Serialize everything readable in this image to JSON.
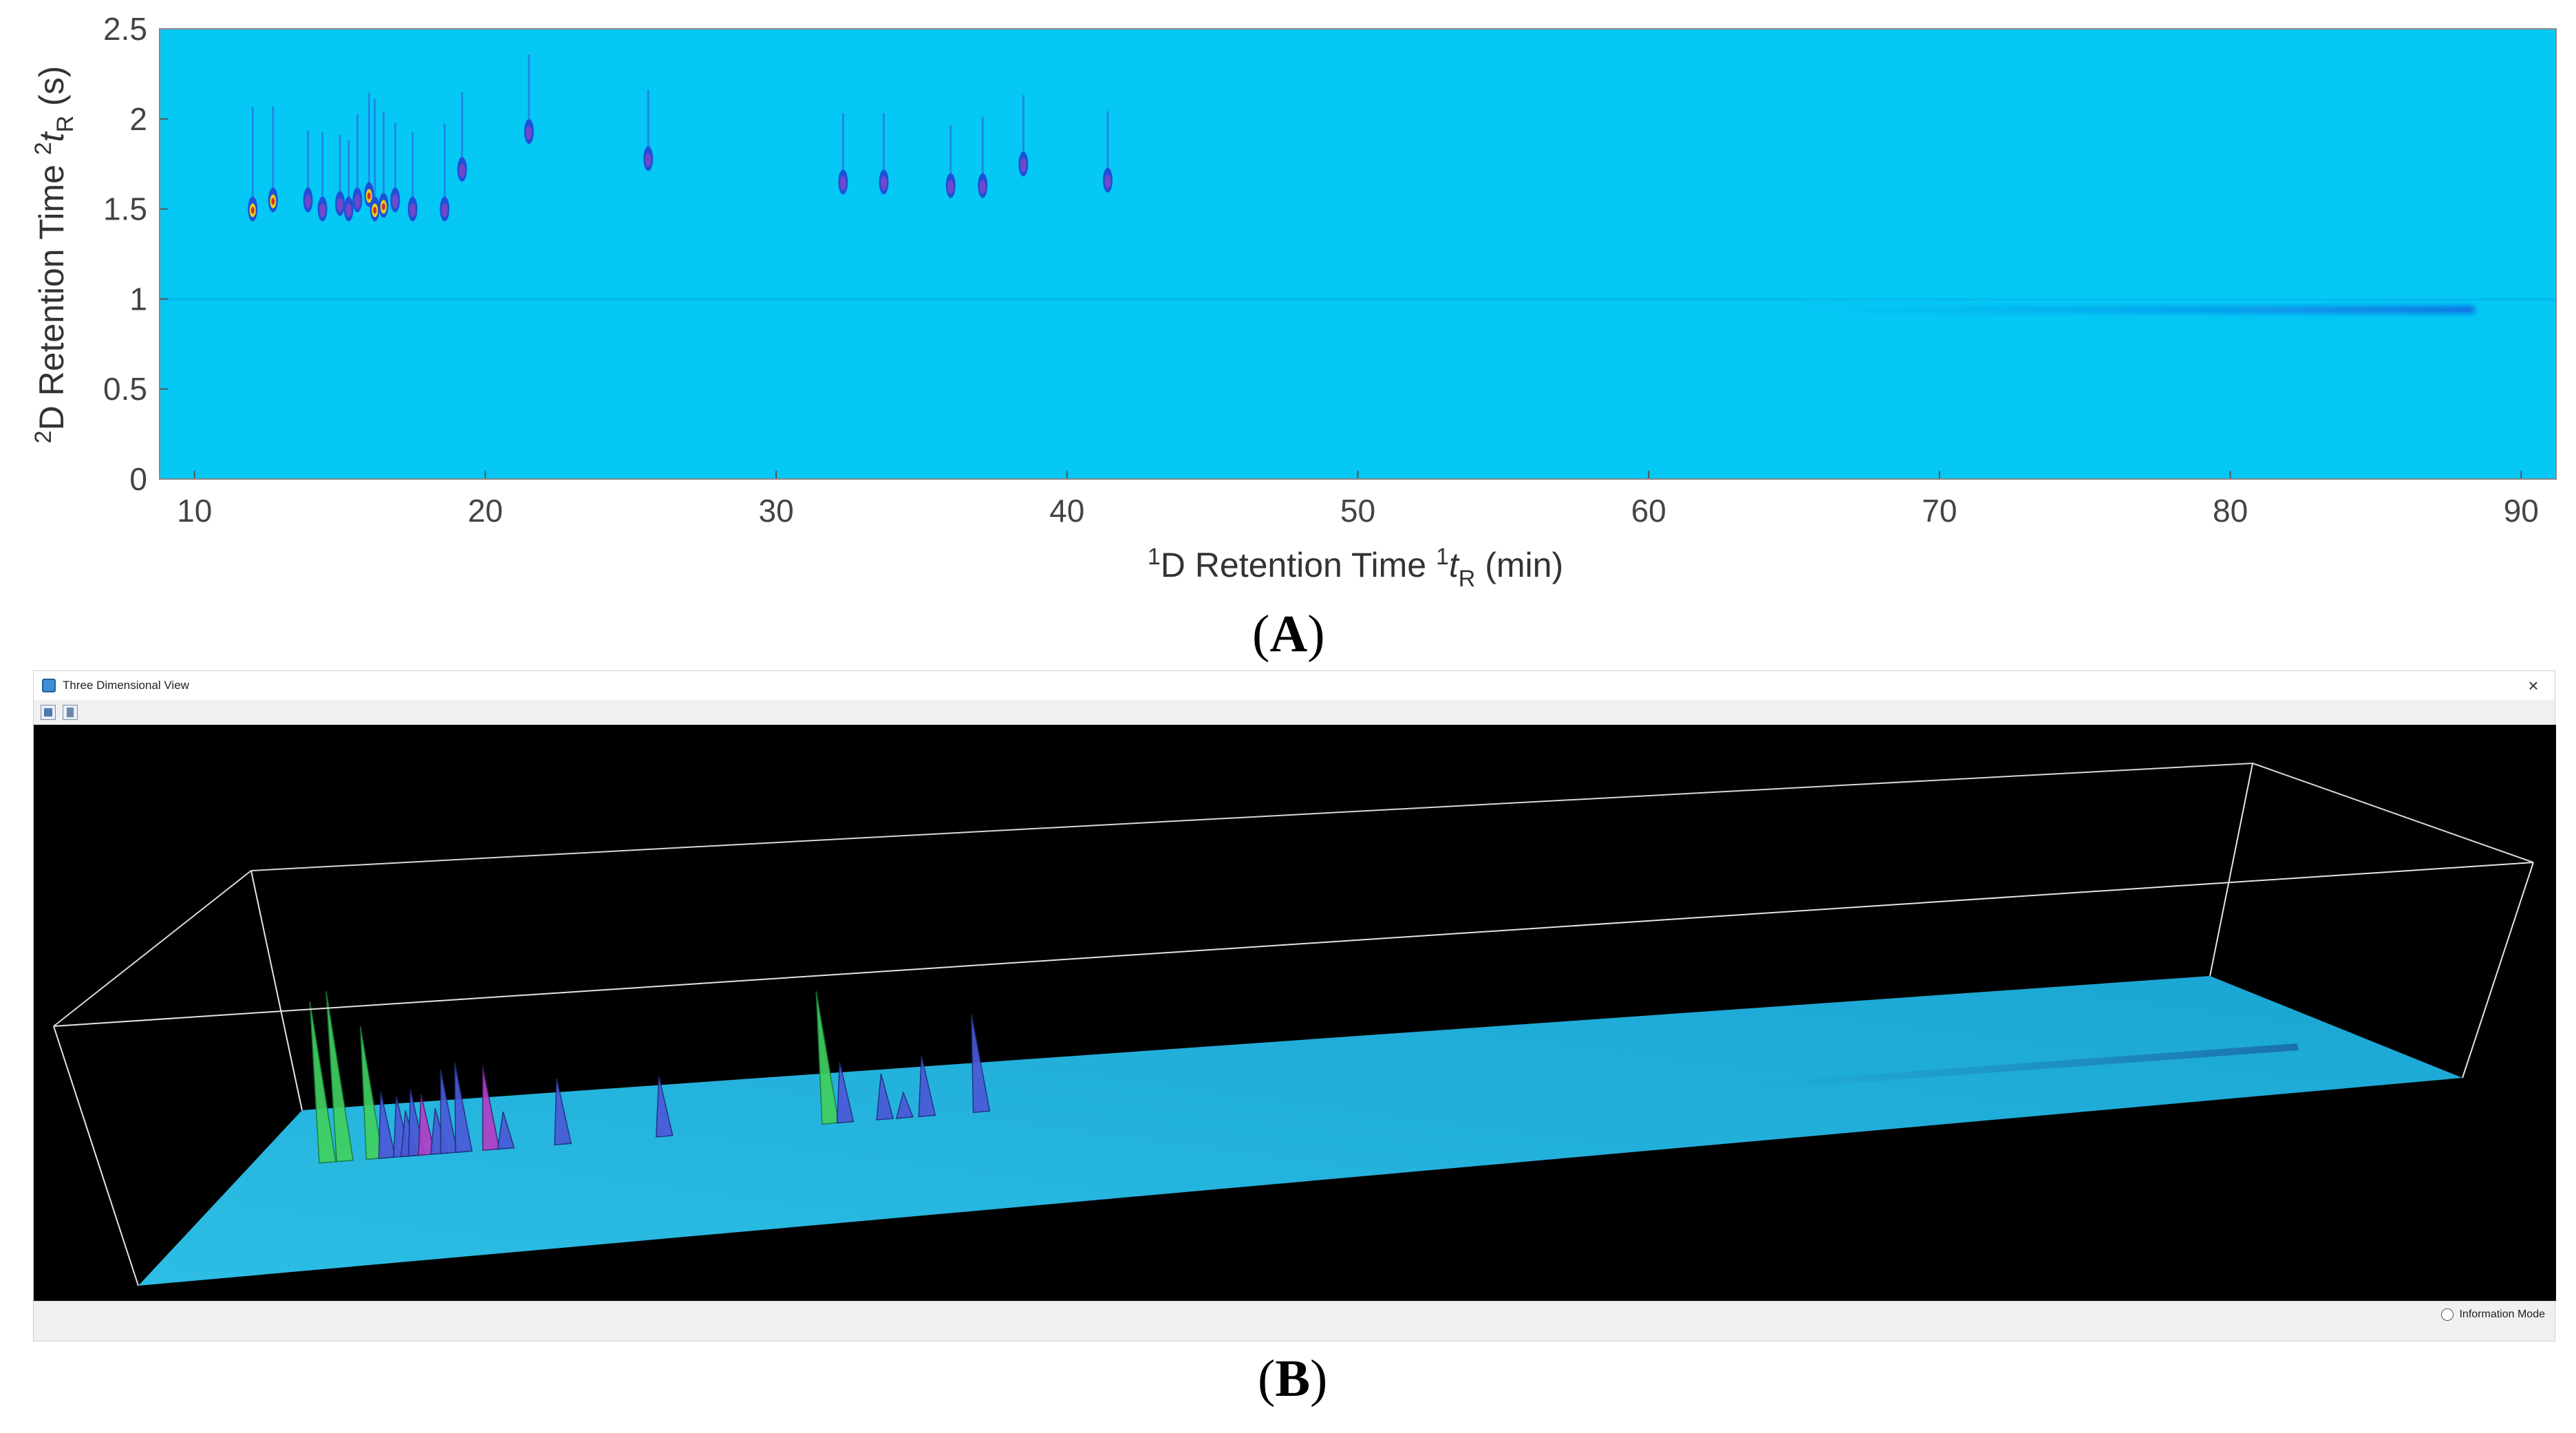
{
  "panel_a": {
    "caption": "(A)",
    "caption_letter": "A",
    "chart_data": {
      "type": "heatmap",
      "title": "",
      "xlabel": {
        "sup": "1",
        "main": "D Retention Time ",
        "sup2": "1",
        "var": "t",
        "sub": "R",
        "unit": " (min)"
      },
      "ylabel": {
        "sup": "2",
        "main": "D Retention Time ",
        "sup2": "2",
        "var": "t",
        "sub": "R",
        "unit": " (s)"
      },
      "xlim": [
        8.8,
        91.2
      ],
      "ylim": [
        0,
        2.5
      ],
      "xticks": [
        10,
        20,
        30,
        40,
        50,
        60,
        70,
        80,
        90
      ],
      "yticks": [
        0,
        0.5,
        1,
        1.5,
        2,
        2.5
      ],
      "ytick_labels": [
        "0",
        "0.5",
        "1",
        "1.5",
        "2",
        "2.5"
      ],
      "background_color": "#05c8f5",
      "peaks": [
        {
          "x": 12.0,
          "y": 1.5,
          "intensity": 0.9
        },
        {
          "x": 12.7,
          "y": 1.55,
          "intensity": 0.8
        },
        {
          "x": 13.9,
          "y": 1.55,
          "intensity": 0.5
        },
        {
          "x": 14.4,
          "y": 1.5,
          "intensity": 0.6
        },
        {
          "x": 15.0,
          "y": 1.53,
          "intensity": 0.5
        },
        {
          "x": 15.3,
          "y": 1.5,
          "intensity": 0.5
        },
        {
          "x": 15.6,
          "y": 1.55,
          "intensity": 0.7
        },
        {
          "x": 16.0,
          "y": 1.58,
          "intensity": 0.9
        },
        {
          "x": 16.2,
          "y": 1.5,
          "intensity": 1.0
        },
        {
          "x": 16.5,
          "y": 1.52,
          "intensity": 0.8
        },
        {
          "x": 16.9,
          "y": 1.55,
          "intensity": 0.6
        },
        {
          "x": 17.5,
          "y": 1.5,
          "intensity": 0.6
        },
        {
          "x": 18.6,
          "y": 1.5,
          "intensity": 0.7
        },
        {
          "x": 19.2,
          "y": 1.72,
          "intensity": 0.6
        },
        {
          "x": 21.5,
          "y": 1.93,
          "intensity": 0.6
        },
        {
          "x": 25.6,
          "y": 1.78,
          "intensity": 0.5
        },
        {
          "x": 32.3,
          "y": 1.65,
          "intensity": 0.5
        },
        {
          "x": 33.7,
          "y": 1.65,
          "intensity": 0.5
        },
        {
          "x": 36.0,
          "y": 1.63,
          "intensity": 0.4
        },
        {
          "x": 37.1,
          "y": 1.63,
          "intensity": 0.5
        },
        {
          "x": 38.5,
          "y": 1.75,
          "intensity": 0.5
        },
        {
          "x": 41.4,
          "y": 1.66,
          "intensity": 0.5
        }
      ],
      "band": {
        "x_start": 65,
        "x_end": 88.4,
        "y": 0.94
      }
    }
  },
  "panel_b": {
    "caption": "(B)",
    "caption_letter": "B",
    "window": {
      "title": "Three Dimensional View",
      "close_label": "×",
      "status_label": "Information Mode"
    },
    "chart_data": {
      "type": "surface",
      "title": "",
      "surface_color": "#22b2da",
      "background_color": "#000000",
      "peaks": [
        {
          "x": 12.0,
          "h": 0.55,
          "color": "green"
        },
        {
          "x": 12.7,
          "h": 0.58,
          "color": "green"
        },
        {
          "x": 13.9,
          "h": 0.45,
          "color": "green"
        },
        {
          "x": 14.4,
          "h": 0.22,
          "color": "blue"
        },
        {
          "x": 15.0,
          "h": 0.2,
          "color": "blue"
        },
        {
          "x": 15.3,
          "h": 0.15,
          "color": "blue"
        },
        {
          "x": 15.6,
          "h": 0.22,
          "color": "blue"
        },
        {
          "x": 16.0,
          "h": 0.2,
          "color": "magenta"
        },
        {
          "x": 16.5,
          "h": 0.15,
          "color": "blue"
        },
        {
          "x": 16.9,
          "h": 0.28,
          "color": "blue"
        },
        {
          "x": 17.5,
          "h": 0.3,
          "color": "blue"
        },
        {
          "x": 18.6,
          "h": 0.28,
          "color": "magenta"
        },
        {
          "x": 19.2,
          "h": 0.12,
          "color": "blue"
        },
        {
          "x": 21.5,
          "h": 0.22,
          "color": "blue"
        },
        {
          "x": 25.6,
          "h": 0.2,
          "color": "blue"
        },
        {
          "x": 32.3,
          "h": 0.45,
          "color": "green"
        },
        {
          "x": 32.9,
          "h": 0.2,
          "color": "blue"
        },
        {
          "x": 34.5,
          "h": 0.15,
          "color": "blue"
        },
        {
          "x": 35.3,
          "h": 0.08,
          "color": "blue"
        },
        {
          "x": 36.2,
          "h": 0.2,
          "color": "blue"
        },
        {
          "x": 38.4,
          "h": 0.33,
          "color": "blue"
        }
      ]
    }
  }
}
